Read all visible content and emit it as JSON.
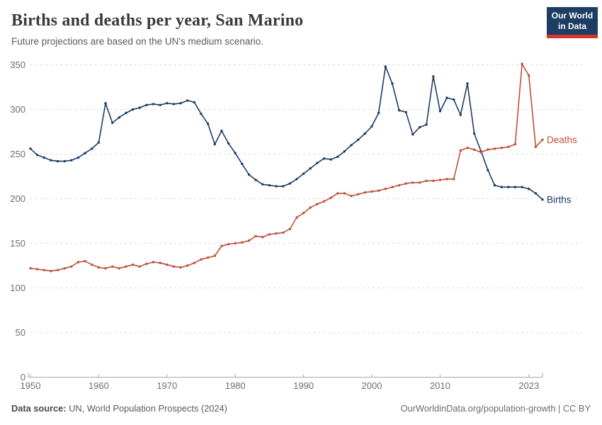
{
  "header": {
    "title": "Births and deaths per year, San Marino",
    "subtitle": "Future projections are based on the UN's medium scenario."
  },
  "logo": {
    "line1": "Our World",
    "line2": "in Data",
    "bg_color": "#1d3d63",
    "bar_color": "#d7352b"
  },
  "footer": {
    "source_label": "Data source:",
    "source_text": "UN, World Population Prospects (2024)",
    "link_text": "OurWorldinData.org/population-growth | CC BY"
  },
  "chart_data": {
    "type": "line",
    "title": "Births and deaths per year, San Marino",
    "subtitle": "Future projections are based on the UN's medium scenario.",
    "x_start": 1950,
    "x_end": 2025,
    "x_ticks": [
      1950,
      1960,
      1970,
      1980,
      1990,
      2000,
      2010,
      2023
    ],
    "ylim": [
      0,
      350
    ],
    "y_ticks": [
      0,
      50,
      100,
      150,
      200,
      250,
      300,
      350
    ],
    "grid": "dashed-horizontal",
    "legend_position": "end-of-line",
    "axis_color": "#a8a8a8",
    "grid_color": "#dadada",
    "tick_label_color": "#6d6d6d",
    "series": [
      {
        "name": "Births",
        "color": "#1d3d63",
        "values": [
          256,
          249,
          246,
          243,
          242,
          242,
          243,
          246,
          251,
          256,
          263,
          307,
          285,
          291,
          296,
          300,
          302,
          305,
          306,
          305,
          307,
          306,
          307,
          310,
          308,
          295,
          284,
          261,
          276,
          262,
          251,
          239,
          227,
          221,
          216,
          215,
          214,
          214,
          217,
          222,
          228,
          234,
          240,
          245,
          244,
          247,
          253,
          260,
          266,
          273,
          281,
          296,
          348,
          329,
          299,
          297,
          272,
          280,
          283,
          337,
          298,
          313,
          311,
          294,
          329,
          273,
          253,
          232,
          215,
          213,
          213,
          213,
          213,
          211,
          206,
          199
        ]
      },
      {
        "name": "Deaths",
        "color": "#c0503a",
        "values": [
          122,
          121,
          120,
          119,
          120,
          122,
          124,
          129,
          130,
          126,
          123,
          122,
          124,
          122,
          124,
          126,
          124,
          127,
          129,
          128,
          126,
          124,
          123,
          125,
          128,
          132,
          134,
          136,
          147,
          149,
          150,
          151,
          153,
          158,
          157,
          160,
          161,
          162,
          166,
          179,
          184,
          190,
          194,
          197,
          201,
          206,
          206,
          203,
          205,
          207,
          208,
          209,
          211,
          213,
          215,
          217,
          218,
          218,
          220,
          220,
          221,
          222,
          222,
          254,
          257,
          255,
          252,
          255,
          256,
          257,
          258,
          261,
          351,
          338,
          258,
          266
        ]
      }
    ]
  }
}
